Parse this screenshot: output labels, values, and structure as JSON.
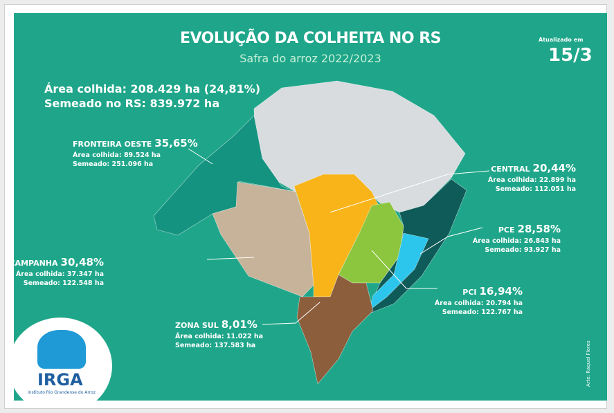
{
  "header": {
    "title": "EVOLUÇÃO DA COLHEITA NO RS",
    "subtitle": "Safra do arroz 2022/2023",
    "updated_label": "Atualizado em",
    "updated_date": "15/3"
  },
  "summary": {
    "harvested": "Área colhida: 208.429 ha (24,81%)",
    "sown": "Semeado no RS: 839.972 ha"
  },
  "regions": [
    {
      "name": "FRONTEIRA OESTE",
      "percent": "35,65%",
      "harvested": "Área colhida: 89.524 ha",
      "sown": "Semeado: 251.096 ha"
    },
    {
      "name": "CENTRAL",
      "percent": "20,44%",
      "harvested": "Área colhida: 22.899 ha",
      "sown": "Semeado: 112.051 ha"
    },
    {
      "name": "PCE",
      "percent": "28,58%",
      "harvested": "Área colhida: 26.843 ha",
      "sown": "Semeado: 93.927 ha"
    },
    {
      "name": "CAMPANHA",
      "percent": "30,48%",
      "harvested": "Área colhida: 37.347 ha",
      "sown": "Semeado: 122.548 ha"
    },
    {
      "name": "PCI",
      "percent": "16,94%",
      "harvested": "Área colhida: 20.794 ha",
      "sown": "Semeado: 122.767 ha"
    },
    {
      "name": "ZONA SUL",
      "percent": "8,01%",
      "harvested": "Área colhida: 11.022 ha",
      "sown": "Semeado: 137.583 ha"
    }
  ],
  "logo": {
    "name": "IRGA",
    "caption": "Instituto Rio Grandense do Arroz"
  },
  "credit": "Arte: Raquel Flores"
}
